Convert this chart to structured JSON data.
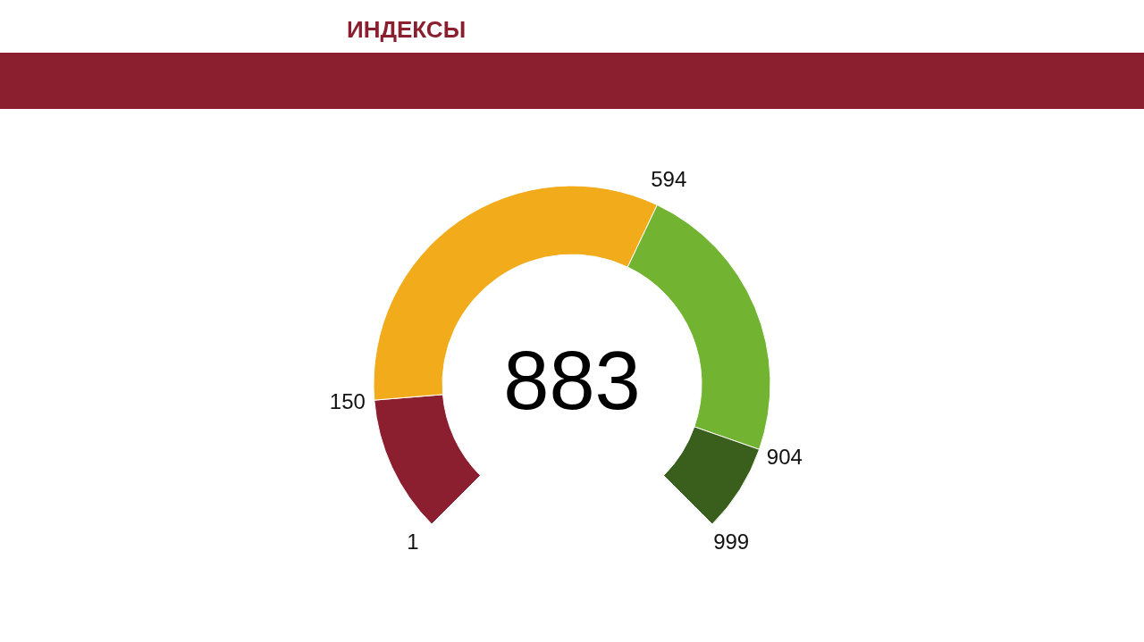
{
  "chart_data": {
    "type": "donut",
    "title": "ИНДЕКСЫ",
    "categories": [
      null,
      null,
      null,
      null
    ],
    "values": [
      14.93,
      44.49,
      31.06,
      9.52
    ],
    "colors": [
      "#8b1f30",
      "#f2ab1b",
      "#72b332",
      "#3a5e1b"
    ],
    "annotations": [
      "883",
      "1",
      "150",
      "594",
      "904",
      "999"
    ]
  }
}
